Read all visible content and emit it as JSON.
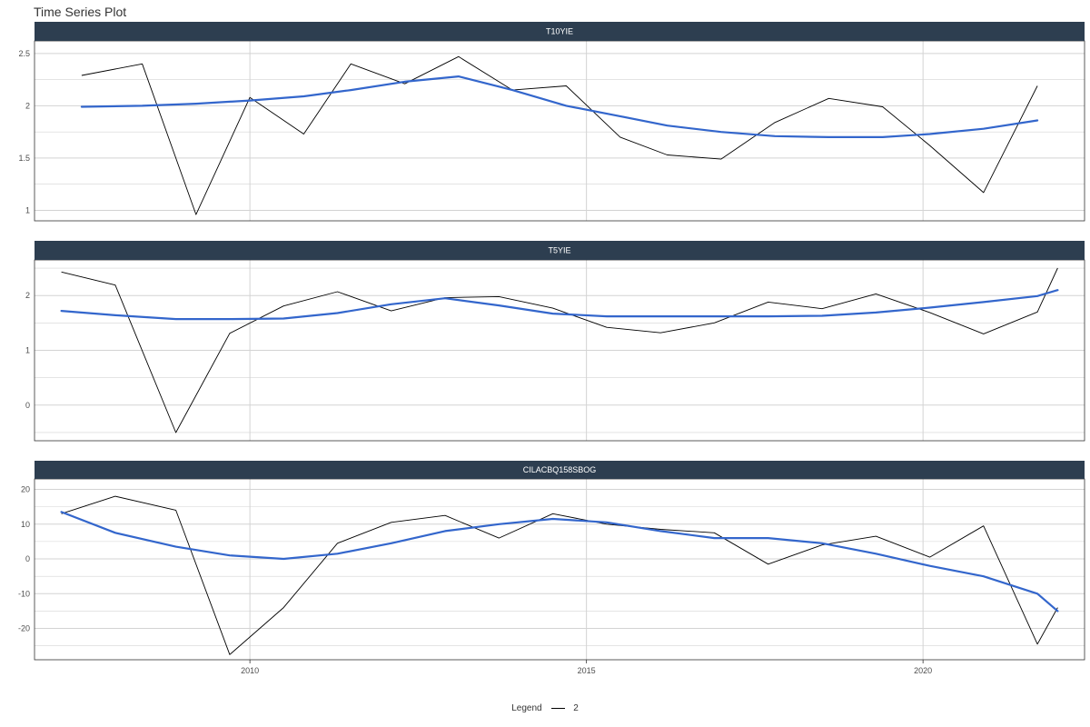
{
  "title": "Time Series Plot",
  "legend": {
    "title": "Legend",
    "entries": [
      "2"
    ]
  },
  "colors": {
    "strip": "#2d3e50",
    "raw": "#000000",
    "smooth": "#3366cc",
    "grid": "#d3d3d3"
  },
  "chart_data": {
    "type": "line",
    "facets": "vertical",
    "xlim": [
      2006.8,
      2022.4
    ],
    "x_ticks": [
      2010,
      2015,
      2020
    ],
    "x": [
      2007.4,
      2008.2,
      2009.0,
      2009.8,
      2010.6,
      2011.3,
      2012.1,
      2012.9,
      2013.7,
      2014.5,
      2015.3,
      2016.1,
      2016.9,
      2017.7,
      2018.5,
      2019.3,
      2020.1,
      2020.9,
      2021.7
    ],
    "panels": [
      {
        "title": "T10YIE",
        "ylim": [
          0.9,
          2.62
        ],
        "y_ticks": [
          1.0,
          1.5,
          2.0,
          2.5
        ],
        "y_ticks_minor": [
          1.25,
          1.75,
          2.25
        ],
        "x": [
          2007.5,
          2008.4,
          2009.2,
          2010.0,
          2010.8,
          2011.5,
          2012.3,
          2013.1,
          2013.9,
          2014.7,
          2015.5,
          2016.2,
          2017.0,
          2017.8,
          2018.6,
          2019.4,
          2020.1,
          2020.9,
          2021.7
        ],
        "raw": [
          2.29,
          2.4,
          0.96,
          2.08,
          1.73,
          2.4,
          2.21,
          2.47,
          2.15,
          2.19,
          1.7,
          1.53,
          1.49,
          1.84,
          2.07,
          1.99,
          1.62,
          1.17,
          2.19
        ],
        "smooth": [
          1.99,
          2.0,
          2.02,
          2.05,
          2.09,
          2.15,
          2.23,
          2.28,
          2.15,
          2.0,
          1.9,
          1.81,
          1.75,
          1.71,
          1.7,
          1.7,
          1.73,
          1.78,
          1.86
        ]
      },
      {
        "title": "T5YIE",
        "ylim": [
          -0.65,
          2.65
        ],
        "y_ticks": [
          0,
          1,
          2
        ],
        "y_ticks_minor": [
          -0.5,
          0.5,
          1.5,
          2.5
        ],
        "x": [
          2007.2,
          2008.0,
          2008.9,
          2009.7,
          2010.5,
          2011.3,
          2012.1,
          2012.9,
          2013.7,
          2014.5,
          2015.3,
          2016.1,
          2016.9,
          2017.7,
          2018.5,
          2019.3,
          2020.1,
          2020.9,
          2021.7
        ],
        "raw": [
          2.43,
          2.19,
          -0.5,
          1.31,
          1.81,
          2.07,
          1.72,
          1.96,
          1.98,
          1.77,
          1.42,
          1.32,
          1.5,
          1.88,
          1.76,
          2.03,
          1.69,
          1.3,
          1.7
        ],
        "smooth": [
          1.72,
          1.64,
          1.57,
          1.57,
          1.58,
          1.68,
          1.84,
          1.95,
          1.82,
          1.67,
          1.62,
          1.62,
          1.62,
          1.62,
          1.63,
          1.69,
          1.78,
          1.88,
          1.99
        ],
        "raw_end": [
          2022.0,
          2.5
        ],
        "smooth_end": [
          2022.0,
          2.1
        ]
      },
      {
        "title": "CILACBQ158SBOG",
        "ylim": [
          -29,
          23
        ],
        "y_ticks": [
          -20,
          -10,
          0,
          10,
          20
        ],
        "y_ticks_minor": [
          -25,
          -15,
          -5,
          5,
          15
        ],
        "x": [
          2007.2,
          2008.0,
          2008.9,
          2009.7,
          2010.5,
          2011.3,
          2012.1,
          2012.9,
          2013.7,
          2014.5,
          2015.3,
          2016.1,
          2016.9,
          2017.7,
          2018.5,
          2019.3,
          2020.1,
          2020.9,
          2021.7
        ],
        "raw": [
          13.0,
          18.0,
          14.0,
          -27.5,
          -14.0,
          4.5,
          10.5,
          12.5,
          6.0,
          13.0,
          10.0,
          8.5,
          7.5,
          -1.5,
          4.0,
          6.5,
          0.5,
          9.5,
          -24.5
        ],
        "smooth": [
          13.5,
          7.5,
          3.5,
          1.0,
          0.0,
          1.5,
          4.5,
          8.0,
          10.0,
          11.5,
          10.5,
          8.0,
          6.0,
          6.0,
          4.5,
          1.5,
          -2.0,
          -5.0,
          -10.0
        ],
        "raw_end": [
          2022.0,
          -14.0
        ],
        "smooth_end": [
          2022.0,
          -15.0
        ]
      }
    ]
  }
}
